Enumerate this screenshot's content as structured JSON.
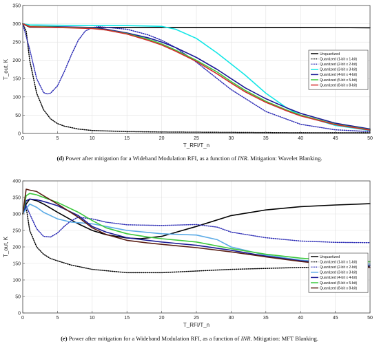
{
  "captions": [
    {
      "label": "(d)",
      "pre": " Power after mitigation for a Wideband Modulation RFI, as a function of ",
      "italic": "INR",
      "post": ". Mitigation: Wavelet Blanking."
    },
    {
      "label": "(e)",
      "pre": " Power after mitigation for a Wideband Modulation RFI, as a function of ",
      "italic": "INR",
      "post": ". Mitigation: MFT Blanking."
    }
  ],
  "chart_data": [
    {
      "type": "line",
      "title": "",
      "xlabel": "T_RFI/T_n",
      "ylabel": "T_out, K",
      "xlim": [
        0,
        50
      ],
      "ylim": [
        0,
        350
      ],
      "xticks": [
        0,
        5,
        10,
        15,
        20,
        25,
        30,
        35,
        40,
        45,
        50
      ],
      "yticks": [
        0,
        50,
        100,
        150,
        200,
        250,
        300,
        350
      ],
      "grid": true,
      "legend_position": "right",
      "series": [
        {
          "name": "Unquantized",
          "color": "#000000",
          "dash": "solid",
          "x": [
            0,
            1,
            5,
            10,
            20,
            30,
            40,
            50
          ],
          "y": [
            300,
            291,
            290,
            290,
            290,
            290,
            290,
            289
          ]
        },
        {
          "name": "Quantized (1-bit x 1-bit)",
          "color": "#000000",
          "dash": "dot",
          "x": [
            0,
            0.5,
            1,
            2,
            3,
            4,
            5,
            6,
            8,
            10,
            15,
            20,
            30,
            40,
            50
          ],
          "y": [
            300,
            280,
            200,
            110,
            65,
            40,
            27,
            20,
            12,
            8,
            5,
            4,
            3,
            2,
            2
          ]
        },
        {
          "name": "Quantized (2-bit x 2-bit)",
          "color": "#2a2ab4",
          "dash": "dot",
          "x": [
            0,
            1,
            2,
            3,
            3.5,
            4,
            5,
            6,
            7,
            8,
            9,
            10,
            11,
            15,
            18,
            20,
            22,
            25,
            28,
            30,
            35,
            40,
            45,
            50
          ],
          "y": [
            300,
            230,
            150,
            112,
            108,
            110,
            130,
            170,
            215,
            255,
            280,
            290,
            292,
            285,
            270,
            255,
            235,
            195,
            150,
            120,
            60,
            25,
            10,
            5
          ]
        },
        {
          "name": "Quantized (3-bit x 3-bit)",
          "color": "#12e6e6",
          "dash": "solid",
          "x": [
            0,
            1,
            5,
            10,
            15,
            20,
            22,
            25,
            28,
            30,
            32,
            35,
            38,
            40,
            45,
            50
          ],
          "y": [
            300,
            297,
            296,
            295,
            295,
            293,
            285,
            260,
            220,
            190,
            160,
            110,
            70,
            50,
            22,
            8
          ]
        },
        {
          "name": "Quantized (4-bit x 4-bit)",
          "color": "#1b1b96",
          "dash": "solid",
          "x": [
            0,
            1,
            5,
            10,
            12,
            15,
            18,
            20,
            22,
            25,
            28,
            30,
            32,
            35,
            38,
            40,
            45,
            50
          ],
          "y": [
            300,
            293,
            292,
            290,
            285,
            275,
            262,
            250,
            235,
            208,
            175,
            150,
            125,
            95,
            70,
            55,
            28,
            12
          ]
        },
        {
          "name": "Quantized (5-bit x 5-bit)",
          "color": "#3cc83c",
          "dash": "solid",
          "x": [
            0,
            1,
            5,
            10,
            12,
            15,
            18,
            20,
            22,
            25,
            28,
            30,
            32,
            35,
            38,
            40,
            45,
            50
          ],
          "y": [
            300,
            293,
            291,
            288,
            283,
            273,
            258,
            245,
            228,
            200,
            168,
            142,
            118,
            88,
            64,
            50,
            25,
            10
          ]
        },
        {
          "name": "Quantized (8-bit x 8-bit)",
          "color": "#d42a2a",
          "dash": "solid",
          "x": [
            0,
            1,
            5,
            10,
            12,
            15,
            18,
            20,
            22,
            25,
            28,
            30,
            32,
            35,
            38,
            40,
            45,
            50
          ],
          "y": [
            300,
            292,
            290,
            287,
            283,
            272,
            255,
            242,
            225,
            197,
            163,
            138,
            114,
            85,
            62,
            48,
            24,
            9
          ]
        }
      ]
    },
    {
      "type": "line",
      "title": "",
      "xlabel": "T_RFI/T_n",
      "ylabel": "T_out, K",
      "xlim": [
        0,
        50
      ],
      "ylim": [
        0,
        400
      ],
      "xticks": [
        0,
        5,
        10,
        15,
        20,
        25,
        30,
        35,
        40,
        45,
        50
      ],
      "yticks": [
        0,
        50,
        100,
        150,
        200,
        250,
        300,
        350,
        400
      ],
      "grid": true,
      "legend_position": "bottom-right",
      "series": [
        {
          "name": "Unquantized",
          "color": "#000000",
          "dash": "solid",
          "x": [
            0,
            0.5,
            1,
            2,
            3,
            5,
            8,
            10,
            12,
            15,
            17,
            20,
            25,
            30,
            35,
            40,
            45,
            50
          ],
          "y": [
            300,
            330,
            345,
            340,
            330,
            305,
            270,
            250,
            237,
            227,
            225,
            232,
            262,
            295,
            312,
            322,
            327,
            331
          ]
        },
        {
          "name": "Quantized (1-bit x 1-bit)",
          "color": "#000000",
          "dash": "dot",
          "x": [
            0,
            0.5,
            1,
            2,
            3,
            4,
            5,
            7,
            10,
            15,
            20,
            25,
            30,
            40,
            50
          ],
          "y": [
            300,
            320,
            250,
            200,
            178,
            165,
            158,
            145,
            132,
            122,
            122,
            127,
            132,
            138,
            140
          ]
        },
        {
          "name": "Quantized (2-bit x 2-bit)",
          "color": "#2a2ab4",
          "dash": "dot",
          "x": [
            0,
            0.5,
            1,
            2,
            3,
            4,
            5,
            6,
            7,
            8,
            10,
            12,
            15,
            20,
            25,
            28,
            30,
            35,
            40,
            45,
            50
          ],
          "y": [
            300,
            325,
            300,
            255,
            232,
            230,
            242,
            263,
            280,
            290,
            285,
            275,
            267,
            265,
            268,
            260,
            245,
            228,
            218,
            214,
            213
          ]
        },
        {
          "name": "Quantized (3-bit x 3-bit)",
          "color": "#5aaae6",
          "dash": "solid",
          "x": [
            0,
            0.5,
            1,
            2,
            3,
            5,
            7,
            9,
            10,
            12,
            15,
            20,
            25,
            28,
            30,
            35,
            40,
            45,
            50
          ],
          "y": [
            300,
            315,
            330,
            320,
            305,
            285,
            275,
            272,
            270,
            262,
            250,
            240,
            236,
            222,
            200,
            175,
            160,
            152,
            148
          ]
        },
        {
          "name": "Quantized (4-bit x 4-bit)",
          "color": "#1b1b96",
          "dash": "solid",
          "x": [
            0,
            0.5,
            1,
            2,
            3,
            5,
            8,
            10,
            12,
            15,
            18,
            20,
            25,
            30,
            35,
            40,
            45,
            50
          ],
          "y": [
            300,
            340,
            345,
            343,
            338,
            325,
            295,
            262,
            245,
            228,
            220,
            215,
            205,
            190,
            172,
            158,
            148,
            143
          ]
        },
        {
          "name": "Quantized (5-bit x 5-bit)",
          "color": "#3cc83c",
          "dash": "solid",
          "x": [
            0,
            0.5,
            1,
            2,
            3,
            5,
            8,
            10,
            12,
            15,
            18,
            20,
            25,
            30,
            35,
            40,
            45,
            50
          ],
          "y": [
            300,
            355,
            362,
            358,
            350,
            335,
            305,
            280,
            258,
            240,
            230,
            225,
            215,
            195,
            178,
            166,
            158,
            155
          ]
        },
        {
          "name": "Quantized (8-bit x 8-bit)",
          "color": "#5a1e14",
          "dash": "solid",
          "x": [
            0,
            0.5,
            1,
            2,
            3,
            5,
            8,
            10,
            12,
            15,
            18,
            20,
            25,
            30,
            35,
            40,
            45,
            50
          ],
          "y": [
            300,
            375,
            372,
            368,
            355,
            330,
            290,
            258,
            238,
            220,
            212,
            208,
            198,
            185,
            170,
            156,
            145,
            138
          ]
        }
      ]
    }
  ]
}
